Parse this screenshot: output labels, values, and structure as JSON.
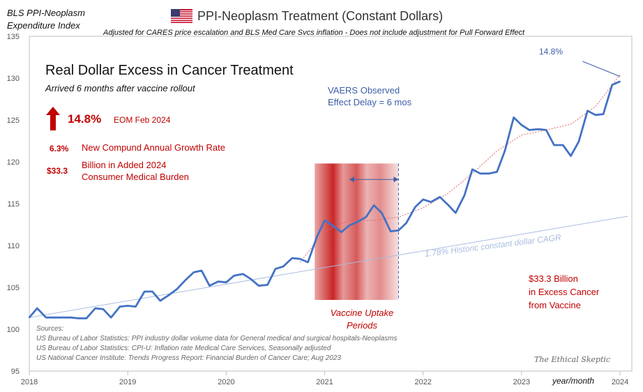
{
  "header": {
    "index_title_line1": "BLS PPI-Neoplasm",
    "index_title_line2": "Expenditure Index",
    "main_title": "PPI-Neoplasm  Treatment  (Constant Dollars)",
    "subtitle": "Adjusted for CARES price  escalation and BLS Med Care Svcs inflation - Does not include adjustment for Pull Forward  Effect"
  },
  "panel": {
    "title": "Real Dollar Excess in Cancer Treatment",
    "subtitle": "Arrived 6 months after vaccine rollout",
    "pct": "14.8%",
    "pct_label": "EOM Feb 2024",
    "cagr_val": "6.3%",
    "cagr_label": "New Compund Annual Growth Rate",
    "burden_val": "$33.3",
    "burden_line1": "Billion in Added 2024",
    "burden_line2": "Consumer Medical Burden"
  },
  "annotations": {
    "vaers_line1": "VAERS Observed",
    "vaers_line2": "Effect Delay = 6 mos",
    "historic_cagr": "1.78%   Historic constant dollar CAGR",
    "excess_line1": "$33.3 Billion",
    "excess_line2": "in Excess Cancer",
    "excess_line3": "from Vaccine",
    "uptake_line1": "Vaccine Uptake",
    "uptake_line2": "Periods",
    "callout_pct": "14.8%",
    "brand": "The Ethical Skeptic",
    "x_unit": "year/month"
  },
  "sources": [
    "Sources:",
    "US Bureau of Labor Statistics: PPI industry dollar volume data for General medical and surgical hospitals-Neoplasms",
    "US Bureau of Labor Statistics: CPI-U: Inflation rate Medical Care Services, Seasonally adjusted",
    "US National Cancer Institute: Trends Progress Report: Financial Burden of Cancer Care; Aug 2023"
  ],
  "colors": {
    "series": "#4472c4",
    "trend": "#a9bde0",
    "accent_red": "#c00000",
    "fit": "#e06666"
  },
  "chart_data": {
    "type": "line",
    "title": "PPI-Neoplasm  Treatment  (Constant Dollars)",
    "ylim": [
      95,
      135
    ],
    "yticks": [
      95,
      100,
      105,
      110,
      115,
      120,
      125,
      130,
      135
    ],
    "xticks": [
      {
        "label": "2018",
        "x": 2018.0
      },
      {
        "label": "2019",
        "x": 2019.0
      },
      {
        "label": "2020",
        "x": 2020.0
      },
      {
        "label": "2021",
        "x": 2021.0
      },
      {
        "label": "2022",
        "x": 2022.0
      },
      {
        "label": "2023",
        "x": 2023.0
      },
      {
        "label": "2024",
        "x": 2024.0
      }
    ],
    "grid": false,
    "series": [
      {
        "values": [
          [
            2018.0,
            101.4
          ],
          [
            2018.08,
            102.5
          ],
          [
            2018.17,
            101.4
          ],
          [
            2018.25,
            101.4
          ],
          [
            2018.33,
            101.4
          ],
          [
            2018.42,
            101.4
          ],
          [
            2018.5,
            101.3
          ],
          [
            2018.58,
            101.3
          ],
          [
            2018.67,
            102.5
          ],
          [
            2018.75,
            102.4
          ],
          [
            2018.83,
            101.4
          ],
          [
            2018.92,
            102.7
          ],
          [
            2019.0,
            102.8
          ],
          [
            2019.08,
            102.7
          ],
          [
            2019.17,
            104.5
          ],
          [
            2019.25,
            104.5
          ],
          [
            2019.33,
            103.4
          ],
          [
            2019.42,
            104.1
          ],
          [
            2019.5,
            104.8
          ],
          [
            2019.58,
            105.8
          ],
          [
            2019.67,
            106.8
          ],
          [
            2019.75,
            107.0
          ],
          [
            2019.83,
            105.2
          ],
          [
            2019.92,
            105.7
          ],
          [
            2020.0,
            105.6
          ],
          [
            2020.08,
            106.4
          ],
          [
            2020.17,
            106.6
          ],
          [
            2020.25,
            106.0
          ],
          [
            2020.33,
            105.2
          ],
          [
            2020.42,
            105.3
          ],
          [
            2020.5,
            107.2
          ],
          [
            2020.58,
            107.5
          ],
          [
            2020.67,
            108.5
          ],
          [
            2020.75,
            108.4
          ],
          [
            2020.83,
            108.0
          ],
          [
            2020.92,
            111.0
          ],
          [
            2021.0,
            113.0
          ],
          [
            2021.08,
            112.4
          ],
          [
            2021.17,
            111.6
          ],
          [
            2021.25,
            112.4
          ],
          [
            2021.33,
            112.8
          ],
          [
            2021.42,
            113.4
          ],
          [
            2021.5,
            114.8
          ],
          [
            2021.58,
            113.9
          ],
          [
            2021.67,
            111.7
          ],
          [
            2021.75,
            111.8
          ],
          [
            2021.83,
            112.7
          ],
          [
            2021.92,
            114.6
          ],
          [
            2022.0,
            115.5
          ],
          [
            2022.08,
            115.2
          ],
          [
            2022.17,
            115.8
          ],
          [
            2022.25,
            114.9
          ],
          [
            2022.33,
            113.9
          ],
          [
            2022.42,
            116.0
          ],
          [
            2022.5,
            119.1
          ],
          [
            2022.58,
            118.6
          ],
          [
            2022.67,
            118.6
          ],
          [
            2022.75,
            118.8
          ],
          [
            2022.83,
            121.3
          ],
          [
            2022.92,
            125.3
          ],
          [
            2023.0,
            124.4
          ],
          [
            2023.08,
            123.8
          ],
          [
            2023.17,
            123.9
          ],
          [
            2023.25,
            123.8
          ],
          [
            2023.33,
            122.0
          ],
          [
            2023.42,
            122.0
          ],
          [
            2023.5,
            120.7
          ],
          [
            2023.58,
            122.4
          ],
          [
            2023.67,
            126.1
          ],
          [
            2023.75,
            125.6
          ],
          [
            2023.83,
            125.7
          ],
          [
            2023.92,
            129.2
          ],
          [
            2024.0,
            129.6
          ]
        ]
      }
    ],
    "trendline": {
      "label": "1.78%   Historic constant dollar CAGR",
      "from": [
        2018.0,
        101.4
      ],
      "to": [
        2024.08,
        113.5
      ]
    },
    "fit_curve": [
      [
        2020.75,
        108.0
      ],
      [
        2021.0,
        111.7
      ],
      [
        2021.25,
        113.0
      ],
      [
        2021.5,
        113.0
      ],
      [
        2021.75,
        113.4
      ],
      [
        2022.0,
        114.5
      ],
      [
        2022.25,
        116.2
      ],
      [
        2022.5,
        118.6
      ],
      [
        2022.75,
        121.3
      ],
      [
        2023.0,
        123.2
      ],
      [
        2023.25,
        123.8
      ],
      [
        2023.5,
        124.5
      ],
      [
        2023.75,
        126.6
      ],
      [
        2024.0,
        130.4
      ]
    ],
    "shaded_period": [
      2020.92,
      2021.75
    ],
    "vaers_arrow": [
      2021.25,
      2021.75
    ]
  }
}
